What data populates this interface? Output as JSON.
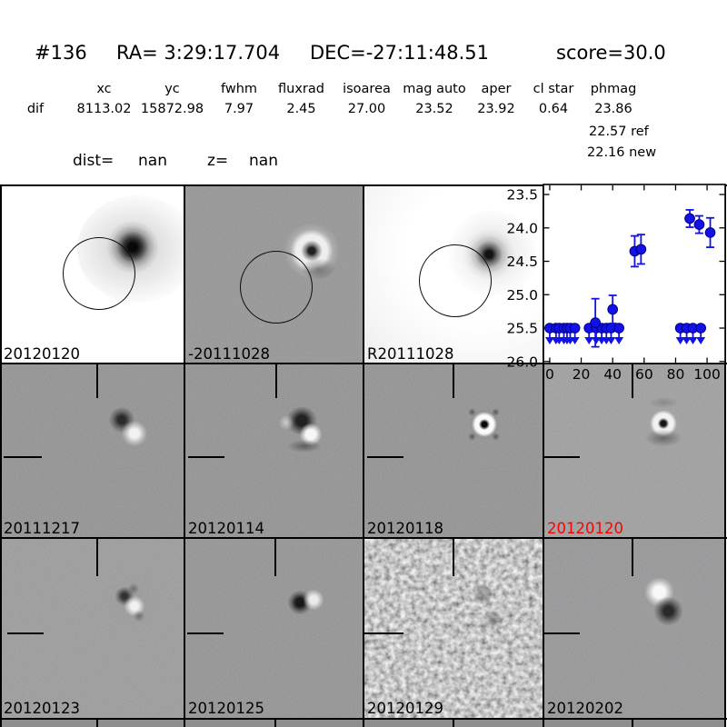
{
  "header": {
    "id": "#136",
    "ra": "RA= 3:29:17.704",
    "dec": "DEC=-27:11:48.51",
    "score": "score=30.0"
  },
  "photometry": {
    "headers": [
      "xc",
      "yc",
      "fwhm",
      "fluxrad",
      "isoarea",
      "mag auto",
      "aper",
      "cl star",
      "phmag"
    ],
    "row_label": "dif",
    "values": [
      "8113.02",
      "15872.98",
      "7.97",
      "2.45",
      "27.00",
      "23.52",
      "23.92",
      "0.64",
      "23.86"
    ],
    "ref": "22.57 ref",
    "new": "22.16 new"
  },
  "params": {
    "dist_label": "dist=",
    "dist_value": "nan",
    "z_label": "z=",
    "z_value": "nan"
  },
  "panels": [
    {
      "label": "20120120",
      "label_color": "#000000"
    },
    {
      "label": "-20111028",
      "label_color": "#000000"
    },
    {
      "label": "R20111028",
      "label_color": "#000000"
    },
    {
      "label": "20111217",
      "label_color": "#000000"
    },
    {
      "label": "20120114",
      "label_color": "#000000"
    },
    {
      "label": "20120118",
      "label_color": "#000000"
    },
    {
      "label": "20120120",
      "label_color": "#ff0000"
    },
    {
      "label": "20120123",
      "label_color": "#000000"
    },
    {
      "label": "20120125",
      "label_color": "#000000"
    },
    {
      "label": "20120129",
      "label_color": "#000000"
    },
    {
      "label": "20120202",
      "label_color": "#000000"
    }
  ],
  "chart_data": {
    "type": "scatter",
    "title": "",
    "xlabel": "",
    "ylabel": "",
    "xlim": [
      -4,
      111.5
    ],
    "ylim": [
      26.03,
      23.35
    ],
    "xticks": [
      0,
      20,
      40,
      60,
      80,
      100
    ],
    "yticks": [
      23.5,
      24.0,
      24.5,
      25.0,
      25.5,
      26.0
    ],
    "grid": false,
    "legend": "none",
    "marker_color": "#1111e8",
    "marker_edge": "#00008b",
    "series": [
      {
        "name": "detections",
        "marker": "circle-errorbar",
        "points": [
          {
            "day": 29,
            "mag": 25.42,
            "err": 0.36
          },
          {
            "day": 40,
            "mag": 25.22,
            "err": 0.21
          },
          {
            "day": 54,
            "mag": 24.35,
            "err": 0.23
          },
          {
            "day": 58,
            "mag": 24.32,
            "err": 0.22
          },
          {
            "day": 89,
            "mag": 23.86,
            "err": 0.13
          },
          {
            "day": 95,
            "mag": 23.95,
            "err": 0.13
          },
          {
            "day": 102,
            "mag": 24.07,
            "err": 0.22
          }
        ]
      },
      {
        "name": "upper-limits",
        "marker": "circle-downarrow",
        "limit_mag": 25.5,
        "days": [
          0,
          4,
          6,
          9,
          11,
          13,
          16,
          25,
          29.5,
          33,
          36,
          39,
          44,
          83,
          87,
          91,
          96
        ]
      }
    ]
  }
}
